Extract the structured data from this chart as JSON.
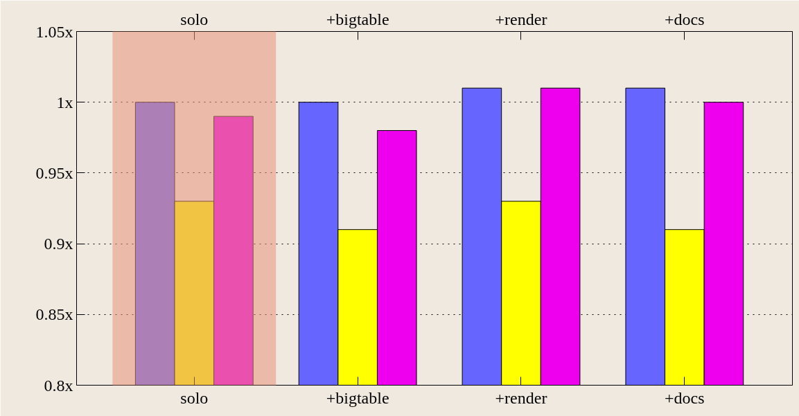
{
  "chart_data": {
    "type": "bar",
    "categories": [
      "solo",
      "+bigtable",
      "+render",
      "+docs"
    ],
    "series": [
      {
        "color": "#6666ff",
        "values": [
          1.0,
          1.0,
          1.01,
          1.01
        ]
      },
      {
        "color": "#ffff00",
        "values": [
          0.93,
          0.91,
          0.93,
          0.91
        ]
      },
      {
        "color": "#ee00ee",
        "values": [
          0.99,
          0.98,
          1.01,
          1.0
        ]
      }
    ],
    "ylim": [
      0.8,
      1.05
    ],
    "yticks": [
      {
        "value": 0.8,
        "label": "0.8x"
      },
      {
        "value": 0.85,
        "label": "0.85x"
      },
      {
        "value": 0.9,
        "label": "0.9x"
      },
      {
        "value": 0.95,
        "label": "0.95x"
      },
      {
        "value": 1.0,
        "label": "1x"
      },
      {
        "value": 1.05,
        "label": "1.05x"
      }
    ],
    "bands": [
      {
        "axis": "x",
        "from": "solo",
        "to": "solo",
        "color": "#e8937c"
      }
    ],
    "grid": "y"
  }
}
